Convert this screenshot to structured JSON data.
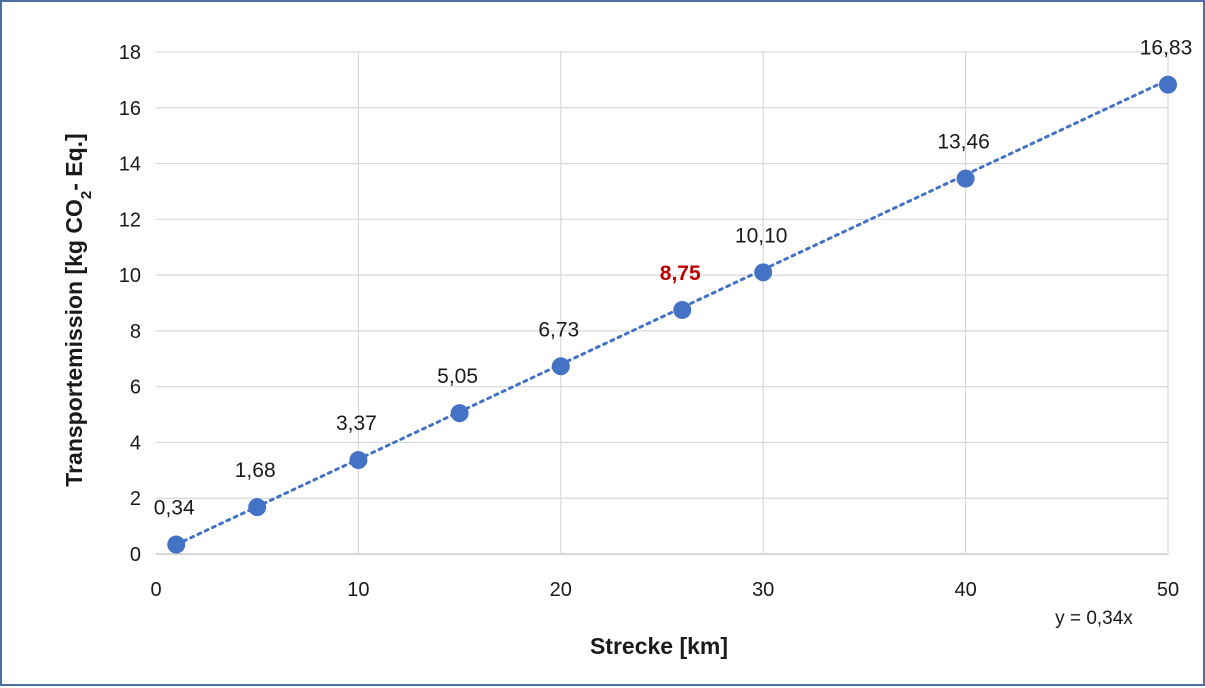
{
  "chart_data": {
    "type": "scatter",
    "xlabel": "Strecke [km]",
    "ylabel": {
      "before": "Transportemission [kg CO",
      "sub": "2",
      "after": "- Eq.]"
    },
    "xlim": [
      0,
      50
    ],
    "ylim": [
      0,
      18
    ],
    "xticks": [
      "0",
      "10",
      "20",
      "30",
      "40",
      "50"
    ],
    "yticks": [
      "0",
      "2",
      "4",
      "6",
      "8",
      "10",
      "12",
      "14",
      "16",
      "18"
    ],
    "grid": true,
    "series": [
      {
        "x": [
          1,
          5,
          10,
          15,
          20,
          26,
          30,
          40,
          50
        ],
        "y": [
          0.34,
          1.68,
          3.37,
          5.05,
          6.73,
          8.75,
          10.1,
          13.46,
          16.83
        ],
        "labels": [
          "0,34",
          "1,68",
          "3,37",
          "5,05",
          "6,73",
          "8,75",
          "10,10",
          "13,46",
          "16,83"
        ],
        "color": "#4472c4",
        "highlight_label_index": 5,
        "highlight_color": "#c00000"
      }
    ],
    "trendline": {
      "type": "linear",
      "slope": 0.34,
      "intercept": 0,
      "style": "dotted",
      "color": "#4472c4",
      "equation": "y = 0,34x"
    }
  }
}
